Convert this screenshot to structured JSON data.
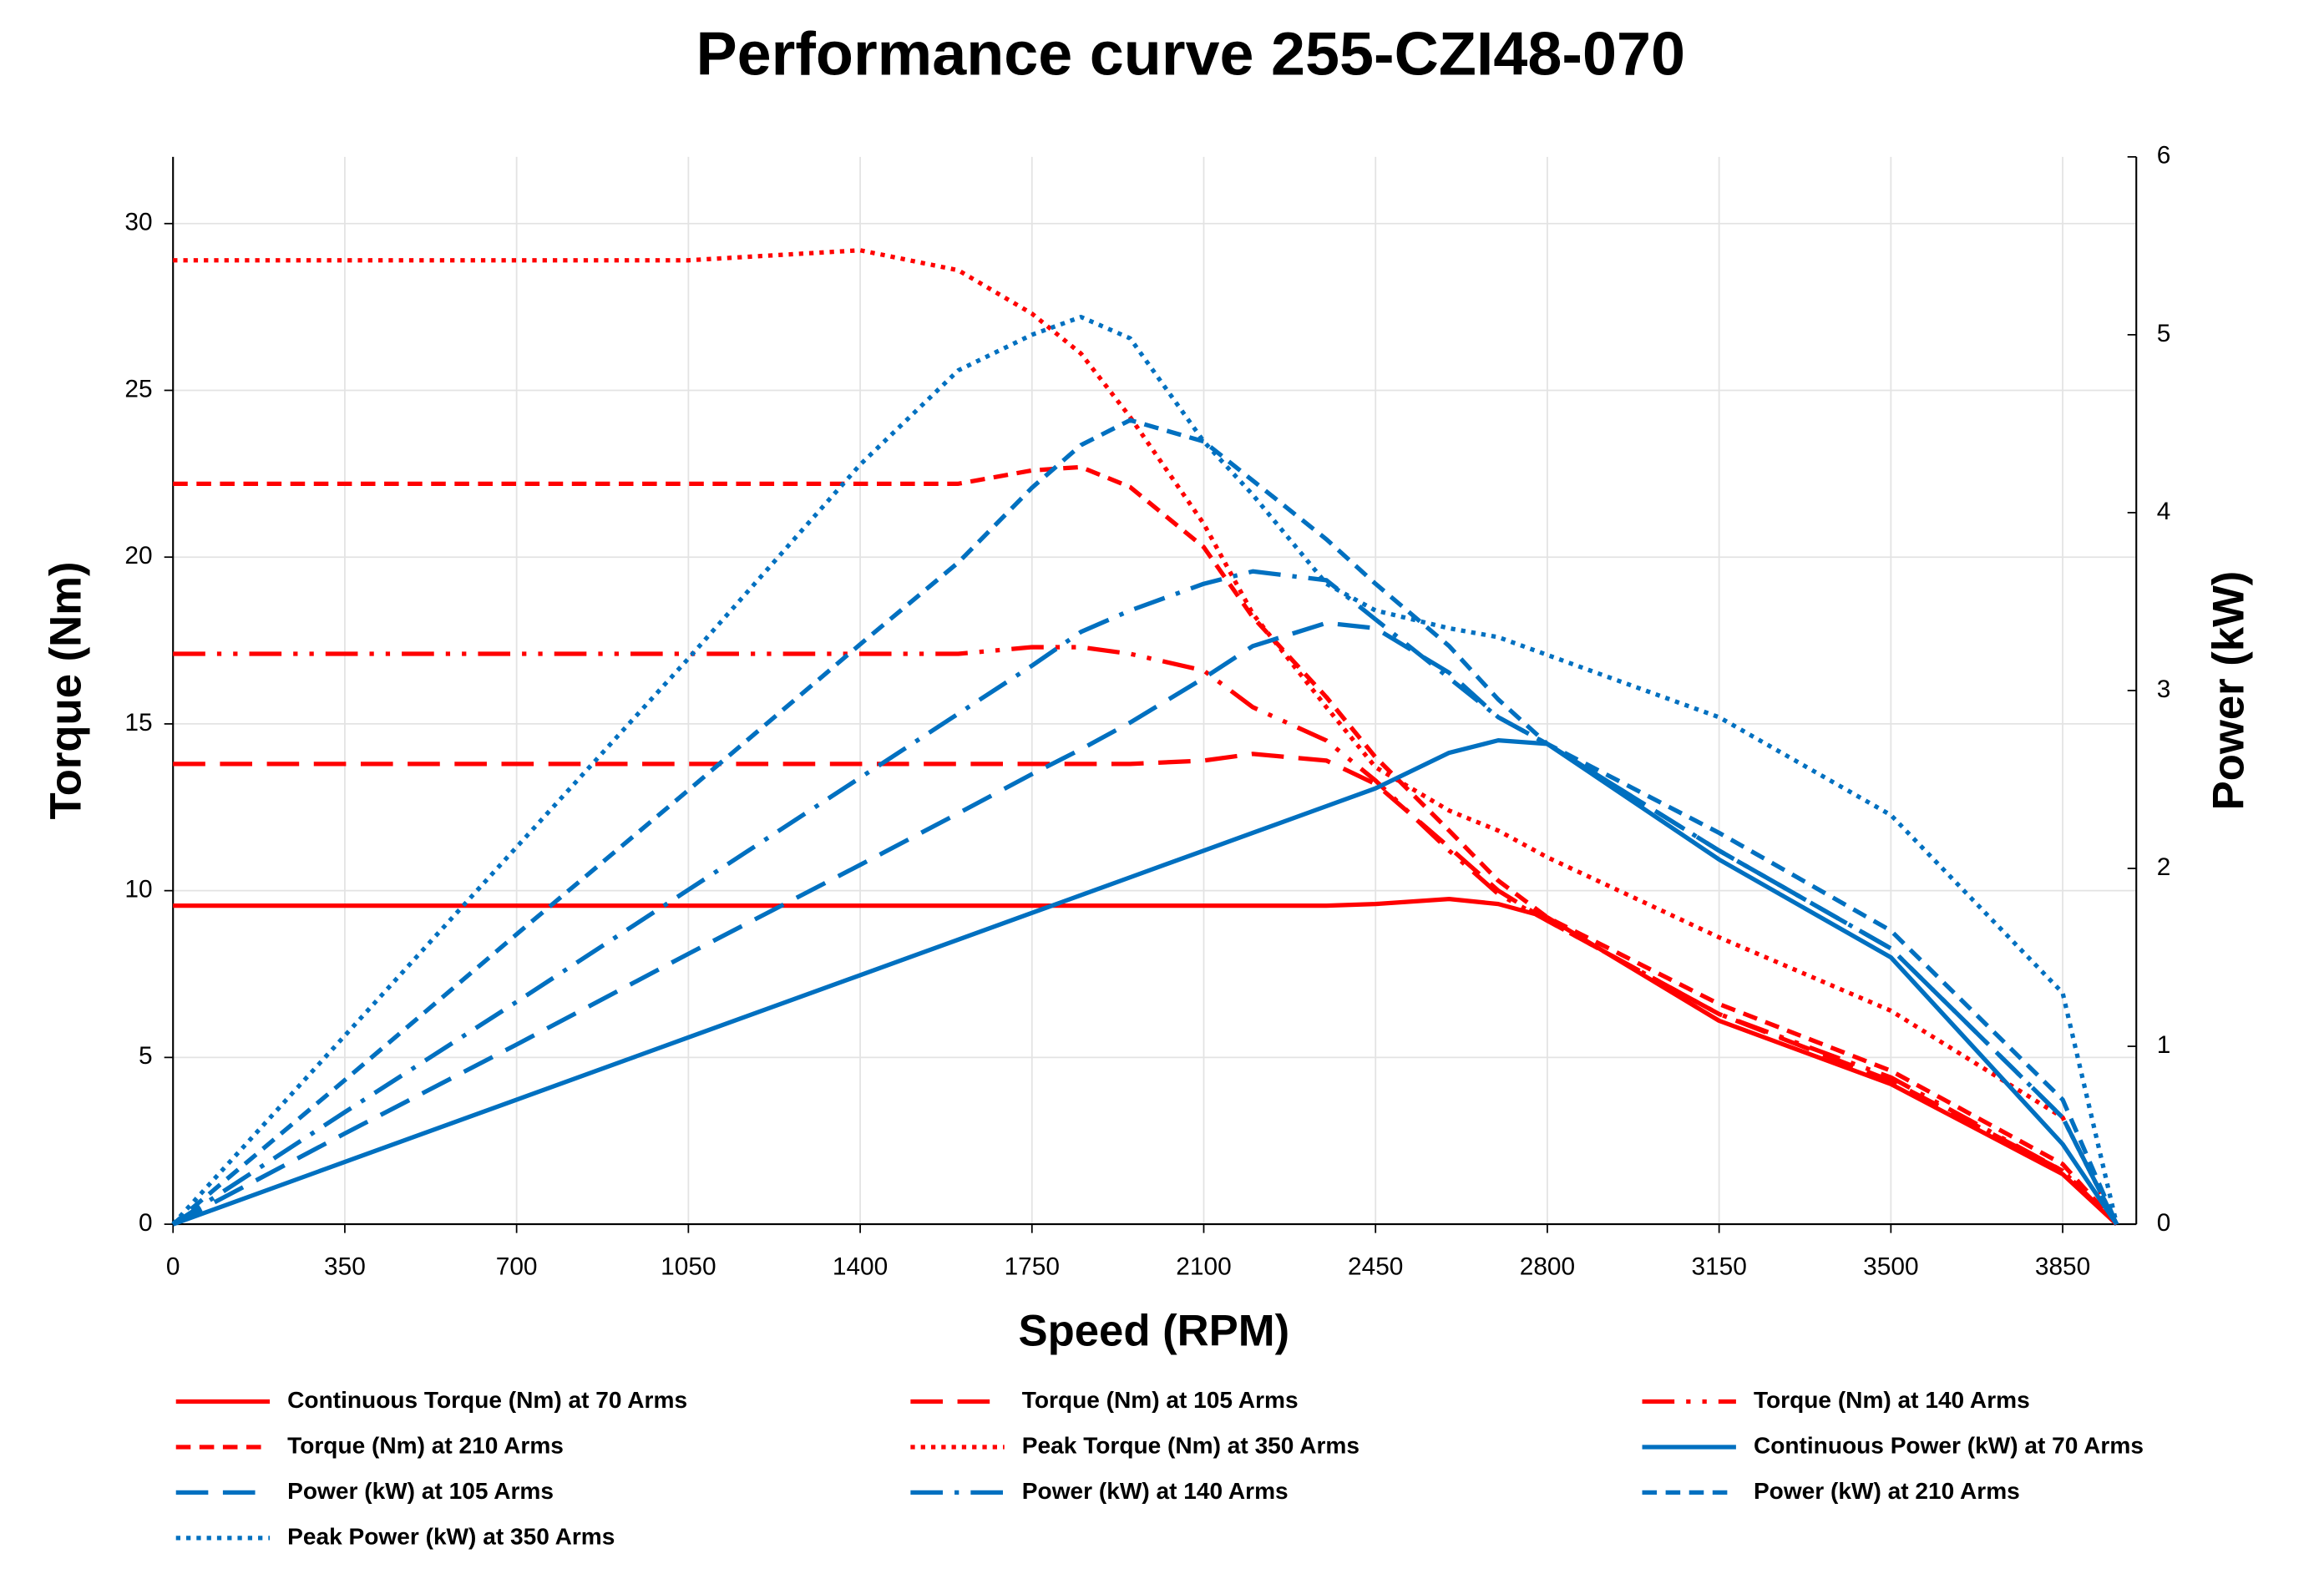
{
  "chart_data": {
    "type": "line",
    "title": "Performance curve 255-CZI48-070",
    "x_label": "Speed (RPM)",
    "y_label": "Torque (Nm)",
    "y2_label": "Power (kW)",
    "x": [
      0,
      350,
      700,
      1050,
      1400,
      1600,
      1750,
      1850,
      1950,
      2100,
      2200,
      2350,
      2450,
      2600,
      2700,
      2800,
      3150,
      3500,
      3850,
      3960
    ],
    "xlim": [
      0,
      4000
    ],
    "xticks": [
      0,
      350,
      700,
      1050,
      1400,
      1750,
      2100,
      2450,
      2800,
      3150,
      3500,
      3850
    ],
    "ylim": [
      0,
      32
    ],
    "yticks": [
      0,
      5,
      10,
      15,
      20,
      25,
      30
    ],
    "y2lim": [
      0,
      6
    ],
    "y2ticks": [
      0,
      1,
      2,
      3,
      4,
      5,
      6
    ],
    "grid": true,
    "series": [
      {
        "name": "Continuous Torque (Nm) at 70 Arms",
        "color": "#ff0000",
        "dash": "solid",
        "values": [
          9.55,
          9.55,
          9.55,
          9.55,
          9.55,
          9.55,
          9.55,
          9.55,
          9.55,
          9.55,
          9.55,
          9.55,
          9.6,
          9.75,
          9.6,
          9.2,
          6.1,
          4.2,
          1.5,
          0
        ]
      },
      {
        "name": "Torque (Nm) at 105 Arms",
        "color": "#ff0000",
        "dash": "longdash",
        "values": [
          13.8,
          13.8,
          13.8,
          13.8,
          13.8,
          13.8,
          13.8,
          13.8,
          13.8,
          13.9,
          14.1,
          13.9,
          13.2,
          11.3,
          10,
          9.1,
          6.3,
          4.3,
          1.6,
          0
        ]
      },
      {
        "name": "Torque (Nm) at 140 Arms",
        "color": "#ff0000",
        "dash": "dashdotdot",
        "values": [
          17.1,
          17.1,
          17.1,
          17.1,
          17.1,
          17.1,
          17.3,
          17.3,
          17.1,
          16.6,
          15.5,
          14.5,
          13.3,
          11.2,
          9.9,
          9.1,
          6.3,
          4.4,
          1.6,
          0
        ]
      },
      {
        "name": "Torque (Nm) at 210 Arms",
        "color": "#ff0000",
        "dash": "dash",
        "values": [
          22.2,
          22.2,
          22.2,
          22.2,
          22.2,
          22.2,
          22.6,
          22.7,
          22.1,
          20.3,
          18.2,
          15.8,
          14,
          11.8,
          10.3,
          9.2,
          6.6,
          4.6,
          1.8,
          0
        ]
      },
      {
        "name": "Peak Torque (Nm) at 350 Arms",
        "color": "#ff0000",
        "dash": "dot",
        "values": [
          28.9,
          28.9,
          28.9,
          28.9,
          29.2,
          28.6,
          27.3,
          26.1,
          24.2,
          21,
          18.3,
          15.5,
          13.7,
          12.4,
          11.8,
          11,
          8.6,
          6.4,
          3.2,
          0
        ]
      },
      {
        "name": "Continuous Power (kW) at 70 Arms",
        "color": "#0070c0",
        "dash": "solid",
        "axis": "y2",
        "values": [
          0,
          0.35,
          0.7,
          1.05,
          1.4,
          1.6,
          1.75,
          1.85,
          1.95,
          2.1,
          2.2,
          2.35,
          2.45,
          2.65,
          2.72,
          2.7,
          2.05,
          1.5,
          0.45,
          0
        ]
      },
      {
        "name": "Power (kW) at 105 Arms",
        "color": "#0070c0",
        "dash": "longdash",
        "axis": "y2",
        "values": [
          0,
          0.51,
          1.01,
          1.52,
          2.02,
          2.31,
          2.53,
          2.67,
          2.82,
          3.07,
          3.25,
          3.38,
          3.35,
          3.1,
          2.85,
          2.7,
          2.1,
          1.55,
          0.6,
          0
        ]
      },
      {
        "name": "Power (kW) at 140 Arms",
        "color": "#0070c0",
        "dash": "dashdot",
        "axis": "y2",
        "values": [
          0,
          0.63,
          1.25,
          1.88,
          2.51,
          2.87,
          3.14,
          3.33,
          3.45,
          3.6,
          3.67,
          3.62,
          3.4,
          3.07,
          2.85,
          2.7,
          2.1,
          1.55,
          0.6,
          0
        ]
      },
      {
        "name": "Power (kW) at 210 Arms",
        "color": "#0070c0",
        "dash": "dash",
        "axis": "y2",
        "values": [
          0,
          0.81,
          1.63,
          2.44,
          3.26,
          3.72,
          4.14,
          4.38,
          4.52,
          4.4,
          4.18,
          3.85,
          3.6,
          3.25,
          2.95,
          2.7,
          2.2,
          1.65,
          0.7,
          0
        ]
      },
      {
        "name": "Peak Power (kW) at 350 Arms",
        "color": "#0070c0",
        "dash": "dot",
        "axis": "y2",
        "values": [
          0,
          1.06,
          2.12,
          3.18,
          4.27,
          4.8,
          5,
          5.1,
          4.98,
          4.4,
          4.1,
          3.6,
          3.45,
          3.35,
          3.3,
          3.2,
          2.85,
          2.3,
          1.3,
          0
        ]
      }
    ]
  }
}
